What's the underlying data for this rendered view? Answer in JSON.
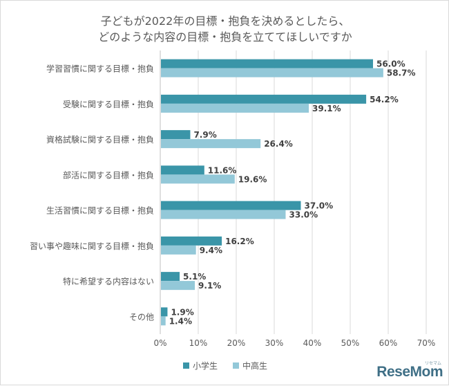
{
  "title_lines": [
    "子どもが2022年の目標・抱負を決めるとしたら、",
    "どのような内容の目標・抱負を立ててほしいですか"
  ],
  "chart_data": {
    "type": "bar",
    "orientation": "horizontal",
    "categories": [
      "学習習慣に関する目標・抱負",
      "受験に関する目標・抱負",
      "資格試験に関する目標・抱負",
      "部活に関する目標・抱負",
      "生活習慣に関する目標・抱負",
      "習い事や趣味に関する目標・抱負",
      "特に希望する内容はない",
      "その他"
    ],
    "series": [
      {
        "name": "小学生",
        "color": "#3a95a8",
        "values": [
          56.0,
          54.2,
          7.9,
          11.6,
          37.0,
          16.2,
          5.1,
          1.9
        ]
      },
      {
        "name": "中高生",
        "color": "#93c8d8",
        "values": [
          58.7,
          39.1,
          26.4,
          19.6,
          33.0,
          9.4,
          9.1,
          1.4
        ]
      }
    ],
    "xlim": [
      0,
      70
    ],
    "x_ticks": [
      "0%",
      "10%",
      "20%",
      "30%",
      "40%",
      "50%",
      "60%",
      "70%"
    ],
    "value_suffix": "%",
    "grid": true,
    "legend_position": "bottom"
  },
  "brand": {
    "name": "ReseMom",
    "kana": "リセマム"
  }
}
